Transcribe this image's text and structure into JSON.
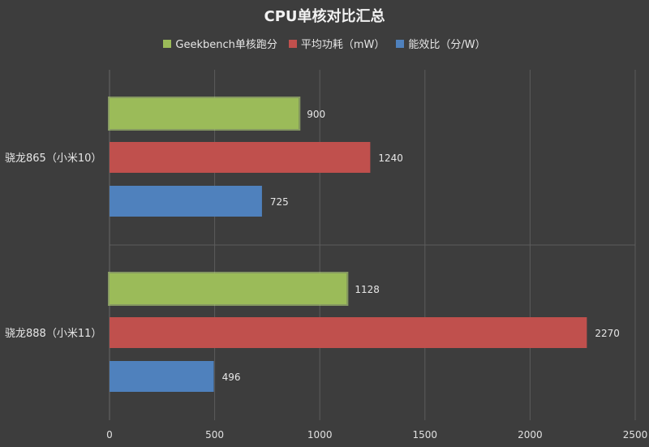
{
  "chart_data": {
    "type": "bar",
    "orientation": "horizontal",
    "title": "CPU单核对比汇总",
    "categories": [
      "骁龙865（小米10）",
      "骁龙888（小米11）"
    ],
    "series": [
      {
        "name": "Geekbench单核跑分",
        "color": "#9bbb59",
        "values": [
          900,
          1128
        ]
      },
      {
        "name": "平均功耗（mW）",
        "color": "#c0504d",
        "values": [
          1240,
          2270
        ]
      },
      {
        "name": "能效比（分/W）",
        "color": "#4f81bd",
        "values": [
          725,
          496
        ]
      }
    ],
    "xlim": [
      0,
      2500
    ],
    "xticks": [
      0,
      500,
      1000,
      1500,
      2000,
      2500
    ],
    "grid": true,
    "legend_position": "top"
  }
}
